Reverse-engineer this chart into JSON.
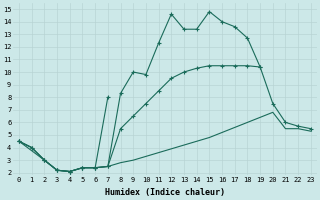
{
  "xlabel": "Humidex (Indice chaleur)",
  "bg_color": "#cce8e8",
  "grid_color": "#b8d4d4",
  "line_color": "#1a6b5a",
  "xlim_min": -0.5,
  "xlim_max": 23.5,
  "ylim_min": 1.8,
  "ylim_max": 15.5,
  "xticks": [
    0,
    1,
    2,
    3,
    4,
    5,
    6,
    7,
    8,
    9,
    10,
    11,
    12,
    13,
    14,
    15,
    16,
    17,
    18,
    19,
    20,
    21,
    22,
    23
  ],
  "yticks": [
    2,
    3,
    4,
    5,
    6,
    7,
    8,
    9,
    10,
    11,
    12,
    13,
    14,
    15
  ],
  "c1_x": [
    0,
    1,
    2,
    3,
    4,
    5,
    6,
    7,
    8,
    9,
    10,
    11,
    12,
    13,
    14,
    15,
    16,
    17,
    18,
    19
  ],
  "c1_y": [
    4.5,
    4.0,
    3.0,
    2.2,
    2.1,
    2.4,
    2.4,
    2.5,
    8.3,
    10.0,
    9.8,
    12.3,
    14.6,
    13.4,
    13.4,
    14.8,
    14.0,
    13.6,
    12.7,
    10.4
  ],
  "c2_x": [
    0,
    1,
    2,
    3,
    4,
    5,
    6,
    7,
    8,
    9,
    10,
    11,
    12,
    13,
    14,
    15,
    16,
    17,
    18,
    19,
    20,
    21,
    22,
    23
  ],
  "c2_y": [
    4.5,
    4.0,
    3.0,
    2.2,
    2.1,
    2.4,
    2.4,
    2.5,
    5.5,
    6.5,
    7.5,
    8.5,
    9.5,
    10.0,
    10.3,
    10.5,
    10.5,
    10.5,
    10.5,
    10.4,
    7.5,
    6.0,
    5.7,
    5.5
  ],
  "c3_x": [
    0,
    1,
    2,
    3,
    4,
    5,
    6,
    7,
    8,
    9,
    10,
    11,
    12,
    13,
    14,
    15,
    16,
    17,
    18,
    19,
    20,
    21,
    22,
    23
  ],
  "c3_y": [
    4.5,
    4.0,
    3.0,
    2.2,
    2.1,
    2.4,
    2.4,
    2.5,
    2.8,
    3.0,
    3.3,
    3.6,
    3.9,
    4.2,
    4.5,
    4.8,
    5.2,
    5.6,
    6.0,
    6.4,
    6.8,
    5.5,
    5.5,
    5.3
  ],
  "c4_x": [
    0,
    2,
    3,
    4,
    5,
    6,
    7
  ],
  "c4_y": [
    4.5,
    3.0,
    2.2,
    2.1,
    2.4,
    2.4,
    8.0
  ]
}
